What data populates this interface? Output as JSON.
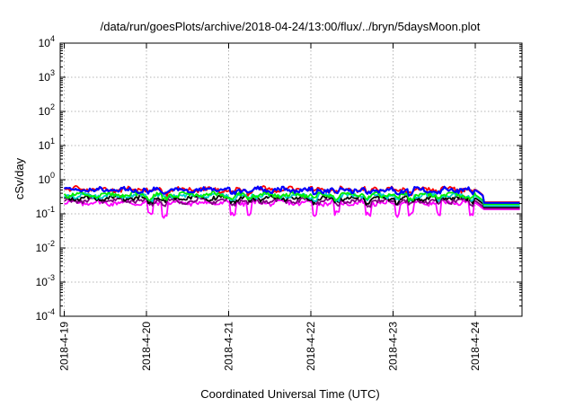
{
  "chart_data": {
    "type": "line",
    "title": "/data/run/goesPlots/archive/2018-04-24/13:00/flux/../bryn/5daysMoon.plot",
    "xlabel": "Coordinated Universal Time (UTC)",
    "ylabel": "cSv/day",
    "y_scale": "log",
    "ylim": [
      0.0001,
      10000
    ],
    "xlim": [
      "2018-04-19 00:00",
      "2018-04-24 13:00"
    ],
    "grid": true,
    "legend": "none",
    "x_ticks": [
      "2018-4-19",
      "2018-4-20",
      "2018-4-21",
      "2018-4-22",
      "2018-4-23",
      "2018-4-24"
    ],
    "y_ticks": [
      {
        "base": "10",
        "exp": "-4"
      },
      {
        "base": "10",
        "exp": "-3"
      },
      {
        "base": "10",
        "exp": "-2"
      },
      {
        "base": "10",
        "exp": "-1"
      },
      {
        "base": "10",
        "exp": "0"
      },
      {
        "base": "10",
        "exp": "1"
      },
      {
        "base": "10",
        "exp": "2"
      },
      {
        "base": "10",
        "exp": "3"
      },
      {
        "base": "10",
        "exp": "4"
      }
    ],
    "series": [
      {
        "color": "#ff00ff",
        "level": 0.21,
        "flat_after": 0.135,
        "dips": true
      },
      {
        "color": "#800080",
        "level": 0.24,
        "flat_after": 0.145
      },
      {
        "color": "#000000",
        "level": 0.29,
        "flat_after": 0.16
      },
      {
        "color": "#00cccc",
        "level": 0.34,
        "flat_after": 0.17
      },
      {
        "color": "#00ee00",
        "level": 0.36,
        "flat_after": 0.19
      },
      {
        "color": "#ff0000",
        "level": 0.52,
        "flat_after": 0.22
      },
      {
        "color": "#0000ff",
        "level": 0.5,
        "flat_after": 0.21
      }
    ],
    "dip_days": [
      1.05,
      1.22,
      2.05,
      2.25,
      3.05,
      3.32,
      3.7,
      4.05,
      4.22,
      4.55,
      4.95
    ]
  }
}
